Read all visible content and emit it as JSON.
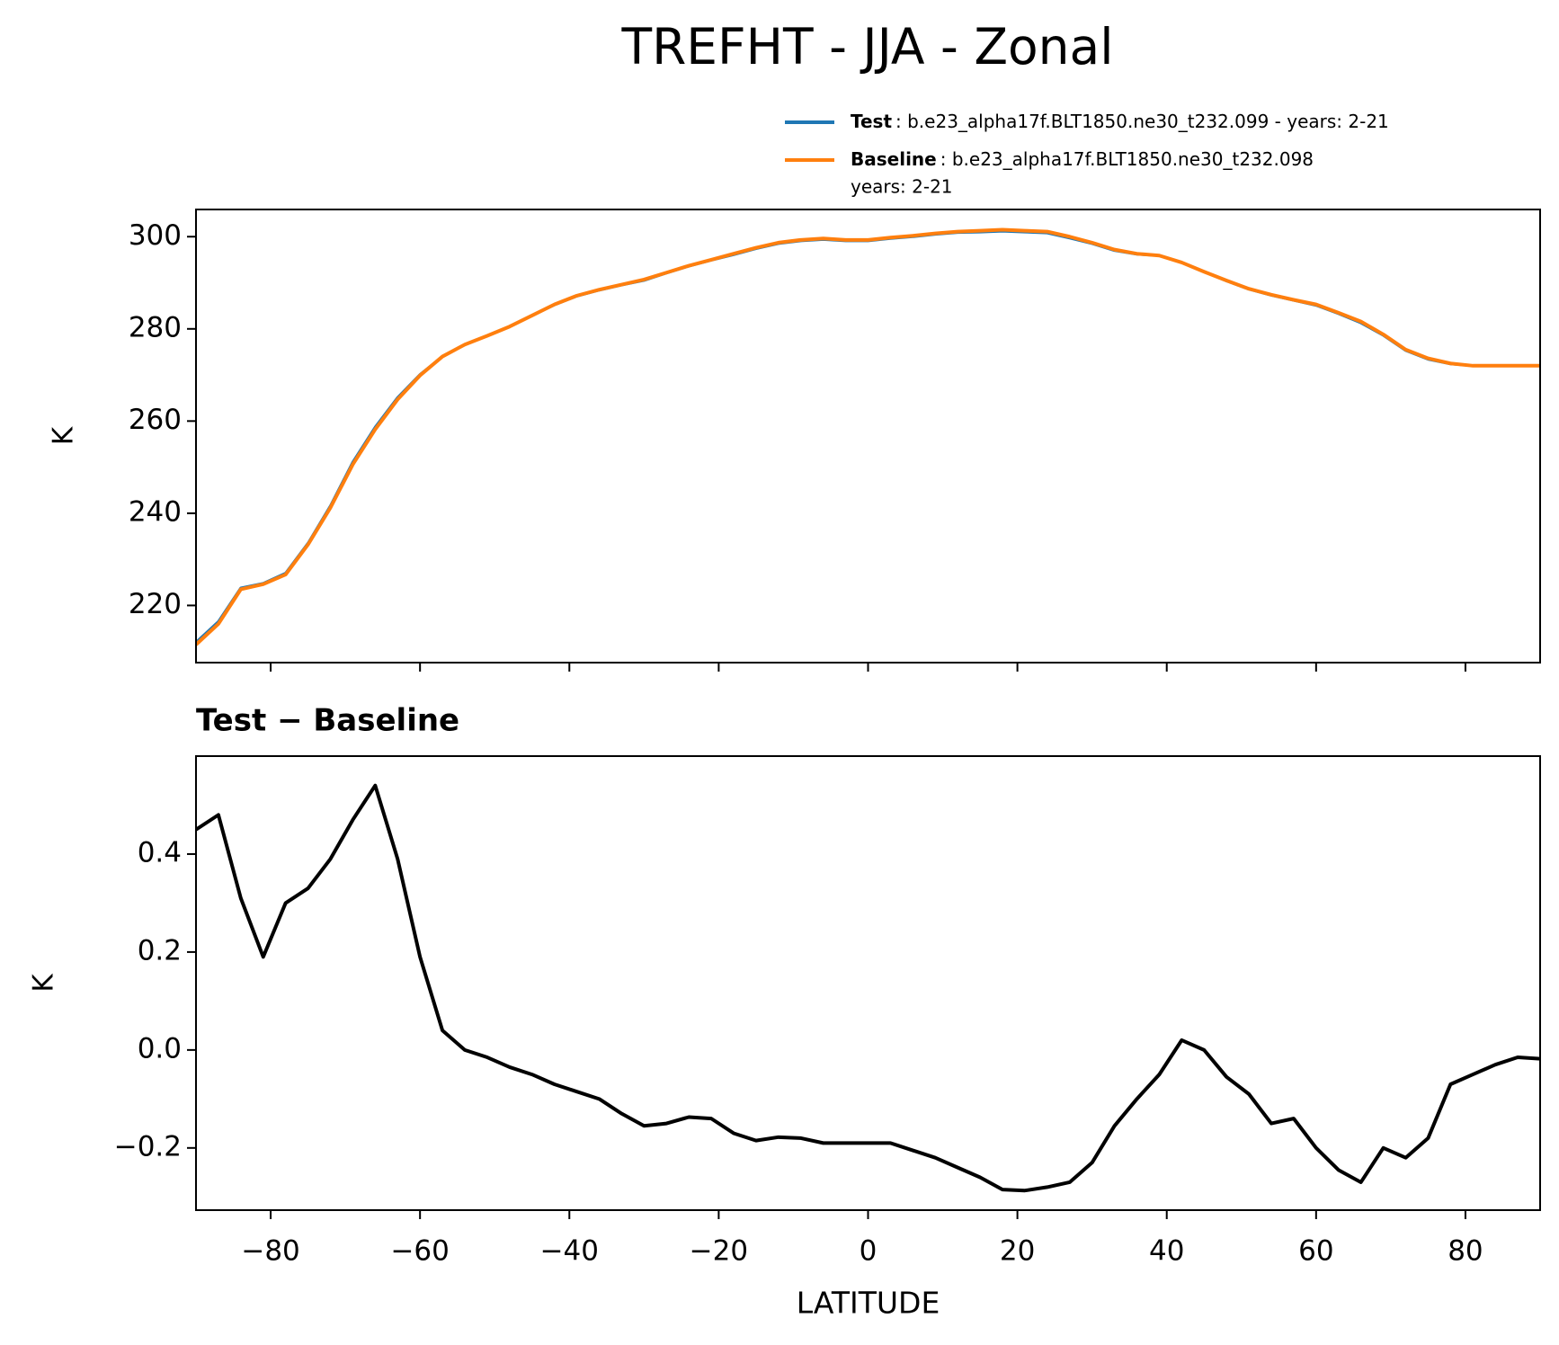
{
  "title": "TREFHT - JJA - Zonal",
  "chart_data": [
    {
      "type": "line",
      "x": [
        -90,
        -87,
        -84,
        -81,
        -78,
        -75,
        -72,
        -69,
        -66,
        -63,
        -60,
        -57,
        -54,
        -51,
        -48,
        -45,
        -42,
        -39,
        -36,
        -33,
        -30,
        -27,
        -24,
        -21,
        -18,
        -15,
        -12,
        -9,
        -6,
        -3,
        0,
        3,
        6,
        9,
        12,
        15,
        18,
        21,
        24,
        27,
        30,
        33,
        36,
        39,
        42,
        45,
        48,
        51,
        54,
        57,
        60,
        63,
        66,
        69,
        72,
        75,
        78,
        81,
        84,
        87,
        90
      ],
      "series": [
        {
          "name": "Test",
          "description": [
            ": b.e23_alpha17f.BLT1850.ne30_t232.099 - years: 2-21"
          ],
          "color": "#1f77b4",
          "values": [
            212.0,
            216.5,
            223.8,
            224.8,
            227.0,
            233.5,
            241.6,
            251.1,
            258.7,
            265.1,
            270.1,
            274.0,
            276.6,
            278.5,
            280.5,
            282.9,
            285.2,
            287.1,
            288.4,
            289.5,
            290.5,
            292.1,
            293.6,
            294.9,
            296.1,
            297.4,
            298.5,
            299.1,
            299.4,
            299.1,
            299.1,
            299.6,
            300.0,
            300.5,
            300.9,
            301.0,
            301.2,
            301.0,
            300.8,
            299.7,
            298.5,
            297.0,
            296.2,
            295.9,
            294.4,
            292.4,
            290.4,
            288.6,
            287.3,
            286.2,
            285.1,
            283.3,
            281.3,
            278.6,
            275.3,
            273.4,
            272.4,
            272.0,
            272.0,
            272.0,
            272.0
          ]
        },
        {
          "name": "Baseline",
          "description": [
            ": b.e23_alpha17f.BLT1850.ne30_t232.098",
            "years: 2-21"
          ],
          "color": "#ff7f0e",
          "values": [
            211.5,
            216.0,
            223.5,
            224.6,
            226.7,
            233.2,
            241.2,
            250.6,
            258.2,
            264.7,
            269.9,
            274.0,
            276.6,
            278.5,
            280.5,
            282.9,
            285.3,
            287.2,
            288.5,
            289.6,
            290.7,
            292.2,
            293.7,
            295.0,
            296.3,
            297.6,
            298.7,
            299.3,
            299.6,
            299.3,
            299.3,
            299.8,
            300.2,
            300.7,
            301.1,
            301.3,
            301.5,
            301.3,
            301.1,
            300.0,
            298.7,
            297.2,
            296.3,
            295.9,
            294.4,
            292.4,
            290.5,
            288.7,
            287.4,
            286.3,
            285.3,
            283.5,
            281.6,
            278.8,
            275.5,
            273.6,
            272.5,
            272.0,
            272.0,
            272.0,
            272.0
          ]
        }
      ],
      "ylabel": "K",
      "xlim": [
        -90,
        90
      ],
      "ylim": [
        207.6,
        305.9
      ],
      "xticks": [
        {
          "value": -80,
          "label": "−80"
        },
        {
          "value": -60,
          "label": "−60"
        },
        {
          "value": -40,
          "label": "−40"
        },
        {
          "value": -20,
          "label": "−20"
        },
        0,
        20,
        40,
        60,
        80
      ],
      "yticks": [
        220,
        240,
        260,
        280,
        300
      ],
      "show_xtick_labels": false
    },
    {
      "type": "line",
      "title": "Test − Baseline",
      "x": [
        -90,
        -87,
        -84,
        -81,
        -78,
        -75,
        -72,
        -69,
        -66,
        -63,
        -60,
        -57,
        -54,
        -51,
        -48,
        -45,
        -42,
        -39,
        -36,
        -33,
        -30,
        -27,
        -24,
        -21,
        -18,
        -15,
        -12,
        -9,
        -6,
        -3,
        0,
        3,
        6,
        9,
        12,
        15,
        18,
        21,
        24,
        27,
        30,
        33,
        36,
        39,
        42,
        45,
        48,
        51,
        54,
        57,
        60,
        63,
        66,
        69,
        72,
        75,
        78,
        81,
        84,
        87,
        90
      ],
      "series": [
        {
          "color": "#000000",
          "values": [
            0.45,
            0.48,
            0.31,
            0.19,
            0.3,
            0.33,
            0.39,
            0.47,
            0.54,
            0.39,
            0.19,
            0.04,
            0.0,
            -0.015,
            -0.035,
            -0.05,
            -0.07,
            -0.085,
            -0.1,
            -0.13,
            -0.155,
            -0.15,
            -0.137,
            -0.14,
            -0.17,
            -0.185,
            -0.178,
            -0.18,
            -0.19,
            -0.19,
            -0.19,
            -0.19,
            -0.205,
            -0.22,
            -0.24,
            -0.26,
            -0.285,
            -0.287,
            -0.28,
            -0.27,
            -0.23,
            -0.155,
            -0.1,
            -0.05,
            0.02,
            0.0,
            -0.055,
            -0.09,
            -0.15,
            -0.14,
            -0.2,
            -0.245,
            -0.27,
            -0.2,
            -0.22,
            -0.18,
            -0.07,
            -0.05,
            -0.03,
            -0.015,
            -0.018
          ]
        }
      ],
      "xlabel": "LATITUDE",
      "ylabel": "K",
      "xlim": [
        -90,
        90
      ],
      "ylim": [
        -0.327,
        0.6
      ],
      "xticks": [
        {
          "value": -80,
          "label": "−80"
        },
        {
          "value": -60,
          "label": "−60"
        },
        {
          "value": -40,
          "label": "−40"
        },
        {
          "value": -20,
          "label": "−20"
        },
        0,
        20,
        40,
        60,
        80
      ],
      "yticks": [
        {
          "value": -0.2,
          "label": "−0.2"
        },
        {
          "value": 0,
          "label": "0.0"
        },
        0.2,
        0.4
      ],
      "show_xtick_labels": true
    }
  ]
}
